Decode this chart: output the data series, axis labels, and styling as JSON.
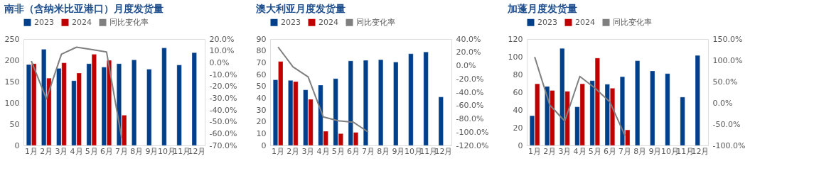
{
  "chart_data": [
    {
      "type": "bar",
      "title": "南非（含纳米比亚港口）月度发货量",
      "categories": [
        "1月",
        "2月",
        "3月",
        "4月",
        "5月",
        "6月",
        "7月",
        "8月",
        "9月",
        "10月",
        "11月",
        "12月"
      ],
      "legend": "top",
      "grid": false,
      "series": [
        {
          "name": "2023",
          "color": "#003f8a",
          "values": [
            190,
            226,
            181,
            152,
            192,
            184,
            192,
            201,
            179,
            229,
            189,
            218
          ]
        },
        {
          "name": "2024",
          "color": "#c00000",
          "values": [
            192,
            158,
            194,
            170,
            214,
            200,
            71,
            null,
            null,
            null,
            null,
            null
          ]
        },
        {
          "name": "同比变化率",
          "type": "line",
          "axis": "y2",
          "marker": "none",
          "color": "#7f7f7f",
          "values": [
            1.3,
            -30.6,
            7.2,
            13.1,
            11.2,
            9.0,
            -63.7,
            null,
            null,
            null,
            null,
            null
          ]
        }
      ],
      "ylim": [
        0,
        250
      ],
      "yticks": [
        0,
        50,
        100,
        150,
        200,
        250
      ],
      "y2lim": [
        -70,
        20
      ],
      "y2ticks": [
        {
          "value": 20,
          "label": "20.0%"
        },
        {
          "value": 10,
          "label": "10.0%"
        },
        {
          "value": 0,
          "label": "0.0%"
        },
        {
          "value": -10,
          "label": "-10.0%"
        },
        {
          "value": -20,
          "label": "-20.0%"
        },
        {
          "value": -30,
          "label": "-30.0%"
        },
        {
          "value": -40,
          "label": "-40.0%"
        },
        {
          "value": -50,
          "label": "-50.0%"
        },
        {
          "value": -60,
          "label": "-60.0%"
        },
        {
          "value": -70,
          "label": "-70.0%"
        }
      ]
    },
    {
      "type": "bar",
      "title": "澳大利亚月度发货量",
      "categories": [
        "1月",
        "2月",
        "3月",
        "4月",
        "5月",
        "6月",
        "7月",
        "8月",
        "9月",
        "10月",
        "11月",
        "12月"
      ],
      "legend": "top",
      "grid": false,
      "series": [
        {
          "name": "2023",
          "color": "#003f8a",
          "values": [
            55.5,
            55,
            47,
            51,
            56.5,
            71.5,
            72,
            72.5,
            70.5,
            77.5,
            79,
            41
          ]
        },
        {
          "name": "2024",
          "color": "#c00000",
          "values": [
            71,
            54,
            39,
            12,
            10,
            11,
            null,
            null,
            null,
            null,
            null,
            null
          ]
        },
        {
          "name": "同比变化率",
          "type": "line",
          "axis": "y2",
          "marker": "none",
          "color": "#7f7f7f",
          "values": [
            28,
            -2,
            -17,
            -77,
            -83,
            -85,
            -100,
            null,
            null,
            null,
            null,
            null
          ]
        }
      ],
      "ylim": [
        0,
        90
      ],
      "yticks": [
        0,
        10,
        20,
        30,
        40,
        50,
        60,
        70,
        80,
        90
      ],
      "y2lim": [
        -120,
        40
      ],
      "y2ticks": [
        {
          "value": 40,
          "label": "40.0%"
        },
        {
          "value": 20,
          "label": "20.0%"
        },
        {
          "value": 0,
          "label": "0.0%"
        },
        {
          "value": -20,
          "label": "-20.0%"
        },
        {
          "value": -40,
          "label": "-40.0%"
        },
        {
          "value": -60,
          "label": "-60.0%"
        },
        {
          "value": -80,
          "label": "-80.0%"
        },
        {
          "value": -100,
          "label": "-100.0%"
        },
        {
          "value": -120,
          "label": "-120.0%"
        }
      ]
    },
    {
      "type": "bar",
      "title": "加蓬月度发货量",
      "categories": [
        "1月",
        "2月",
        "3月",
        "4月",
        "5月",
        "6月",
        "7月",
        "8月",
        "9月",
        "10月",
        "11月",
        "12月"
      ],
      "legend": "top",
      "grid": false,
      "series": [
        {
          "name": "2023",
          "color": "#003f8a",
          "values": [
            33.5,
            66.5,
            109.5,
            43.5,
            73,
            69,
            77.5,
            95.5,
            84,
            81,
            54.5,
            101.5
          ]
        },
        {
          "name": "2024",
          "color": "#c00000",
          "values": [
            69.5,
            62,
            61,
            69.5,
            98.5,
            64.5,
            17.5,
            null,
            null,
            null,
            null,
            null
          ]
        },
        {
          "name": "同比变化率",
          "type": "line",
          "axis": "y2",
          "marker": "none",
          "color": "#7f7f7f",
          "values": [
            108,
            -5,
            -43,
            62,
            35,
            2,
            -77,
            null,
            null,
            null,
            null,
            null
          ]
        }
      ],
      "ylim": [
        0,
        120
      ],
      "yticks": [
        0,
        20,
        40,
        60,
        80,
        100,
        120
      ],
      "y2lim": [
        -100,
        150
      ],
      "y2ticks": [
        {
          "value": 150,
          "label": "150.0%"
        },
        {
          "value": 100,
          "label": "100.0%"
        },
        {
          "value": 50,
          "label": "50.0%"
        },
        {
          "value": 0,
          "label": "0.0%"
        },
        {
          "value": -50,
          "label": "-50.0%"
        },
        {
          "value": -100,
          "label": "-100.0%"
        }
      ]
    }
  ]
}
